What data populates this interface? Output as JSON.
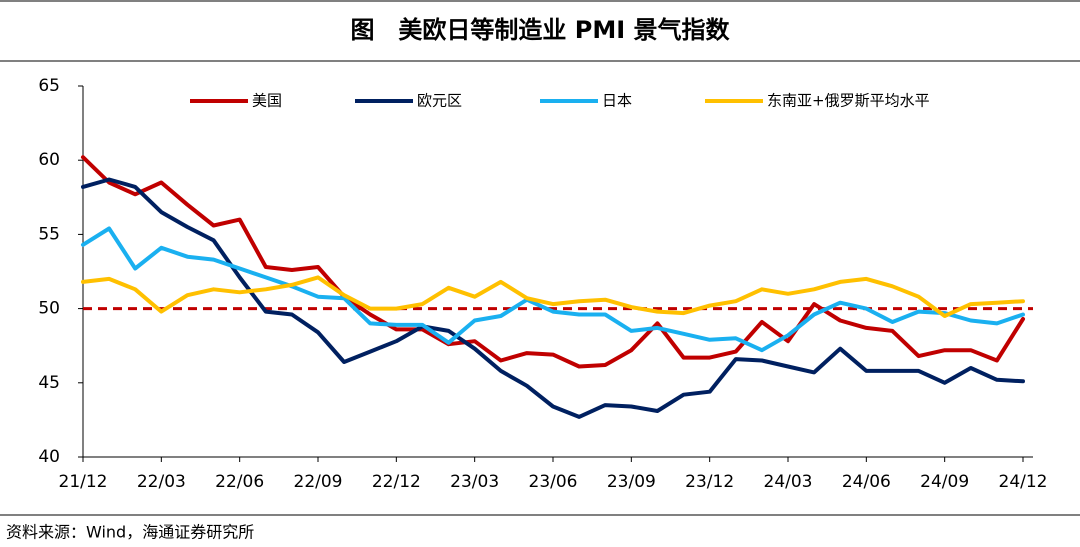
{
  "chart_data": {
    "type": "line",
    "title": "图　美欧日等制造业 PMI 景气指数",
    "source": "资料来源：Wind，海通证券研究所",
    "categories": [
      "21/12",
      null,
      null,
      "22/03",
      null,
      null,
      "22/06",
      null,
      null,
      "22/09",
      null,
      null,
      "22/12",
      null,
      null,
      "23/03",
      null,
      null,
      "23/06",
      null,
      null,
      "23/09",
      null,
      null,
      "23/12",
      null,
      null,
      "24/03",
      null,
      null,
      "24/06",
      null,
      null,
      "24/09",
      null,
      null,
      "24/12"
    ],
    "series": [
      {
        "name": "美国",
        "color": "#c00000",
        "values": [
          60.2,
          58.5,
          57.7,
          58.5,
          57.0,
          55.6,
          56.0,
          52.8,
          52.6,
          52.8,
          50.8,
          49.6,
          48.6,
          48.6,
          47.6,
          47.8,
          46.5,
          47.0,
          46.9,
          46.1,
          46.2,
          47.2,
          49.0,
          46.7,
          46.7,
          47.1,
          49.1,
          47.8,
          50.3,
          49.2,
          48.7,
          48.5,
          46.8,
          47.2,
          47.2,
          46.5,
          49.3
        ]
      },
      {
        "name": "欧元区",
        "color": "#002060",
        "values": [
          58.2,
          58.7,
          58.2,
          56.5,
          55.5,
          54.6,
          52.1,
          49.8,
          49.6,
          48.4,
          46.4,
          47.1,
          47.8,
          48.8,
          48.5,
          47.3,
          45.8,
          44.8,
          43.4,
          42.7,
          43.5,
          43.4,
          43.1,
          44.2,
          44.4,
          46.6,
          46.5,
          46.1,
          45.7,
          47.3,
          45.8,
          45.8,
          45.8,
          45.0,
          46.0,
          45.2,
          45.1
        ]
      },
      {
        "name": "日本",
        "color": "#1ab0f0",
        "values": [
          54.3,
          55.4,
          52.7,
          54.1,
          53.5,
          53.3,
          52.7,
          52.1,
          51.5,
          50.8,
          50.7,
          49.0,
          48.9,
          48.9,
          47.7,
          49.2,
          49.5,
          50.6,
          49.8,
          49.6,
          49.6,
          48.5,
          48.7,
          48.3,
          47.9,
          48.0,
          47.2,
          48.2,
          49.6,
          50.4,
          50.0,
          49.1,
          49.8,
          49.7,
          49.2,
          49.0,
          49.6
        ]
      },
      {
        "name": "东南亚+俄罗斯平均水平",
        "color": "#ffc000",
        "values": [
          51.8,
          52.0,
          51.3,
          49.8,
          50.9,
          51.3,
          51.1,
          51.3,
          51.6,
          52.1,
          50.9,
          50.0,
          50.0,
          50.3,
          51.4,
          50.8,
          51.8,
          50.7,
          50.3,
          50.5,
          50.6,
          50.1,
          49.8,
          49.7,
          50.2,
          50.5,
          51.3,
          51.0,
          51.3,
          51.8,
          52.0,
          51.5,
          50.8,
          49.5,
          50.3,
          50.4,
          50.5
        ]
      }
    ],
    "reference_line": {
      "value": 50,
      "color": "#c00000"
    },
    "ylim": [
      40,
      65
    ],
    "yticks": [
      40,
      45,
      50,
      55,
      60,
      65
    ],
    "grid": false,
    "legend": "top"
  }
}
